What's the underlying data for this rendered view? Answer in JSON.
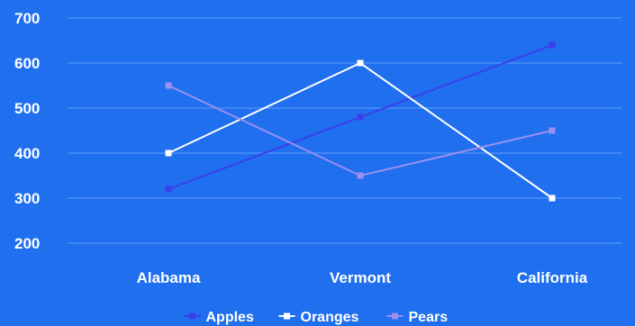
{
  "colors": {
    "background": "#1f6fef",
    "grid": "#4d8ff5",
    "text": "#ffffff"
  },
  "chart_data": {
    "type": "line",
    "categories": [
      "Alabama",
      "Vermont",
      "California"
    ],
    "series": [
      {
        "name": "Apples",
        "values": [
          320,
          480,
          640
        ],
        "color": "#3b3fea"
      },
      {
        "name": "Oranges",
        "values": [
          400,
          600,
          300
        ],
        "color": "#ffffff"
      },
      {
        "name": "Pears",
        "values": [
          550,
          350,
          450
        ],
        "color": "#9d8ff0"
      }
    ],
    "ylim": [
      200,
      700
    ],
    "yticks": [
      200,
      300,
      400,
      500,
      600,
      700
    ],
    "grid": true,
    "legend_position": "bottom",
    "title": "",
    "xlabel": "",
    "ylabel": ""
  }
}
